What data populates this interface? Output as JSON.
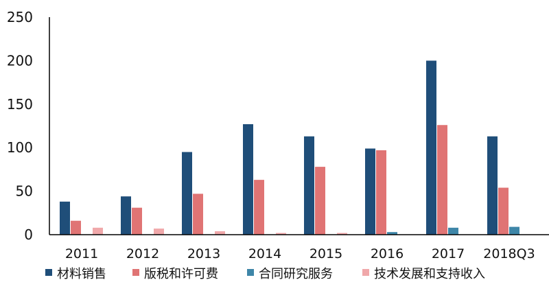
{
  "chart_data": {
    "type": "bar",
    "categories": [
      "2011",
      "2012",
      "2013",
      "2014",
      "2015",
      "2016",
      "2017",
      "2018Q3"
    ],
    "ylim": [
      0,
      250
    ],
    "yticks": [
      0,
      50,
      100,
      150,
      200,
      250
    ],
    "grid": false,
    "legend": "bottom",
    "series": [
      {
        "name": "材料销售",
        "color": "#1f4e79",
        "values": [
          38,
          44,
          95,
          127,
          113,
          99,
          200,
          113
        ]
      },
      {
        "name": "版税和许可费",
        "color": "#e07474",
        "values": [
          16,
          31,
          47,
          63,
          78,
          97,
          126,
          54
        ]
      },
      {
        "name": "合同研究服务",
        "color": "#3e86a8",
        "values": [
          0,
          0,
          0,
          0,
          0,
          3,
          8,
          9
        ]
      },
      {
        "name": "技术发展和支持收入",
        "color": "#f0a8aa",
        "values": [
          8,
          7,
          4,
          2,
          2,
          0,
          0,
          0
        ]
      }
    ]
  }
}
